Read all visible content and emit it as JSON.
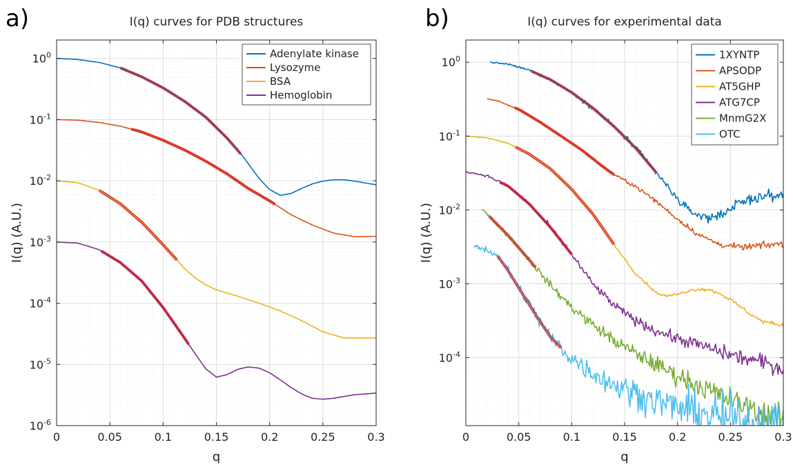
{
  "figure": {
    "background": "#ffffff"
  },
  "chart_data": [
    {
      "panel_tag": "a)",
      "type": "line",
      "title": "I(q) curves for PDB structures",
      "xlabel": "q",
      "ylabel": "I(q) (A.U.)",
      "xlim": [
        0,
        0.3
      ],
      "ylim": [
        1e-06,
        2
      ],
      "yscale": "log",
      "xticks": [
        0,
        0.05,
        0.1,
        0.15,
        0.2,
        0.25,
        0.3
      ],
      "xtick_labels": [
        "0",
        "0.05",
        "0.1",
        "0.15",
        "0.2",
        "0.25",
        "0.3"
      ],
      "yticks": [
        1,
        0.1,
        0.01,
        0.001,
        0.0001,
        1e-05,
        1e-06
      ],
      "ytick_labels": [
        {
          "base": "10",
          "exp": "0"
        },
        {
          "base": "10",
          "exp": "-1"
        },
        {
          "base": "10",
          "exp": "-2"
        },
        {
          "base": "10",
          "exp": "-3"
        },
        {
          "base": "10",
          "exp": "-4"
        },
        {
          "base": "10",
          "exp": "-5"
        },
        {
          "base": "10",
          "exp": "-6"
        }
      ],
      "grid": true,
      "minor_grid": true,
      "legend_position": "top-right",
      "highlight_color": "#d62728",
      "series": [
        {
          "name": "Adenylate kinase",
          "color": "#0072bd",
          "noise": 0,
          "x": [
            0,
            0.02,
            0.04,
            0.06,
            0.08,
            0.1,
            0.12,
            0.14,
            0.16,
            0.175,
            0.19,
            0.2,
            0.21,
            0.22,
            0.23,
            0.24,
            0.25,
            0.26,
            0.27,
            0.28,
            0.29,
            0.3
          ],
          "y": [
            1,
            0.96,
            0.86,
            0.7,
            0.5,
            0.33,
            0.2,
            0.11,
            0.05,
            0.025,
            0.011,
            0.0072,
            0.0058,
            0.0062,
            0.0075,
            0.0089,
            0.0099,
            0.0104,
            0.0104,
            0.0099,
            0.0092,
            0.0086
          ],
          "highlight": [
            0.06,
            0.173
          ]
        },
        {
          "name": "Lysozyme",
          "color": "#d95319",
          "noise": 0,
          "x": [
            0,
            0.02,
            0.04,
            0.06,
            0.08,
            0.1,
            0.12,
            0.14,
            0.16,
            0.18,
            0.2,
            0.22,
            0.24,
            0.26,
            0.28,
            0.3
          ],
          "y": [
            0.1,
            0.098,
            0.09,
            0.078,
            0.063,
            0.046,
            0.032,
            0.021,
            0.013,
            0.0075,
            0.0047,
            0.0028,
            0.0019,
            0.0014,
            0.00122,
            0.00124
          ],
          "highlight": [
            0.07,
            0.205
          ]
        },
        {
          "name": "BSA",
          "color": "#edb120",
          "noise": 0,
          "x": [
            0,
            0.02,
            0.04,
            0.06,
            0.08,
            0.1,
            0.11,
            0.12,
            0.13,
            0.14,
            0.15,
            0.17,
            0.19,
            0.21,
            0.23,
            0.25,
            0.27,
            0.3
          ],
          "y": [
            0.01,
            0.0093,
            0.007,
            0.0042,
            0.0021,
            0.0009,
            0.00058,
            0.00037,
            0.00026,
            0.0002,
            0.000165,
            0.00013,
            0.0001,
            7.5e-05,
            5.2e-05,
            3.4e-05,
            2.7e-05,
            2.7e-05
          ],
          "highlight": [
            0.04,
            0.113
          ]
        },
        {
          "name": "Hemoglobin",
          "color": "#7e2f8e",
          "noise": 0,
          "x": [
            0,
            0.02,
            0.04,
            0.06,
            0.08,
            0.1,
            0.11,
            0.12,
            0.13,
            0.14,
            0.15,
            0.16,
            0.17,
            0.18,
            0.19,
            0.2,
            0.21,
            0.22,
            0.23,
            0.24,
            0.25,
            0.26,
            0.27,
            0.28,
            0.3
          ],
          "y": [
            0.001,
            0.00096,
            0.00075,
            0.00046,
            0.00023,
            8.5e-05,
            4.8e-05,
            2.7e-05,
            1.5e-05,
            8.5e-06,
            6.2e-06,
            6.8e-06,
            8.3e-06,
            9.1e-06,
            8.7e-06,
            7.3e-06,
            5.6e-06,
            4.2e-06,
            3.3e-06,
            2.8e-06,
            2.7e-06,
            2.8e-06,
            3e-06,
            3.2e-06,
            3.4e-06
          ],
          "highlight": [
            0.042,
            0.124
          ]
        }
      ]
    },
    {
      "panel_tag": "b)",
      "type": "line",
      "title": "I(q) curves for experimental data",
      "xlabel": "q",
      "ylabel": "I(q) (A.U.)",
      "xlim": [
        0,
        0.3
      ],
      "ylim": [
        1.2e-05,
        2
      ],
      "yscale": "log",
      "xticks": [
        0,
        0.05,
        0.1,
        0.15,
        0.2,
        0.25,
        0.3
      ],
      "xtick_labels": [
        "0",
        "0.05",
        "0.1",
        "0.15",
        "0.2",
        "0.25",
        "0.3"
      ],
      "yticks": [
        1,
        0.1,
        0.01,
        0.001,
        0.0001
      ],
      "ytick_labels": [
        {
          "base": "10",
          "exp": "0"
        },
        {
          "base": "10",
          "exp": "-1"
        },
        {
          "base": "10",
          "exp": "-2"
        },
        {
          "base": "10",
          "exp": "-3"
        },
        {
          "base": "10",
          "exp": "-4"
        }
      ],
      "grid": true,
      "minor_grid": true,
      "legend_position": "top-right",
      "highlight_color": "#d62728",
      "series": [
        {
          "name": "1XYNTP",
          "color": "#0072bd",
          "noise": 0.08,
          "x": [
            0.023,
            0.04,
            0.06,
            0.08,
            0.1,
            0.12,
            0.14,
            0.16,
            0.18,
            0.19,
            0.2,
            0.21,
            0.22,
            0.23,
            0.24,
            0.25,
            0.26,
            0.27,
            0.28,
            0.29,
            0.3
          ],
          "y": [
            1,
            0.94,
            0.78,
            0.58,
            0.39,
            0.24,
            0.135,
            0.07,
            0.032,
            0.021,
            0.014,
            0.01,
            0.0085,
            0.0078,
            0.0085,
            0.0105,
            0.0125,
            0.0142,
            0.0152,
            0.0156,
            0.0155
          ],
          "highlight": [
            0.062,
            0.18
          ]
        },
        {
          "name": "APSODP",
          "color": "#d95319",
          "noise": 0.05,
          "x": [
            0.02,
            0.03,
            0.05,
            0.07,
            0.09,
            0.11,
            0.13,
            0.14,
            0.16,
            0.18,
            0.2,
            0.22,
            0.24,
            0.26,
            0.28,
            0.3
          ],
          "y": [
            0.32,
            0.3,
            0.23,
            0.155,
            0.1,
            0.064,
            0.038,
            0.03,
            0.021,
            0.013,
            0.0075,
            0.0046,
            0.0034,
            0.0031,
            0.0033,
            0.0035
          ],
          "highlight": [
            0.046,
            0.14
          ]
        },
        {
          "name": "AT5GHP",
          "color": "#edb120",
          "noise": 0.03,
          "x": [
            0,
            0.02,
            0.04,
            0.06,
            0.08,
            0.1,
            0.12,
            0.14,
            0.16,
            0.18,
            0.19,
            0.2,
            0.21,
            0.22,
            0.23,
            0.24,
            0.25,
            0.26,
            0.27,
            0.28,
            0.3
          ],
          "y": [
            0.1,
            0.095,
            0.08,
            0.057,
            0.036,
            0.019,
            0.0088,
            0.0034,
            0.0014,
            0.00075,
            0.00068,
            0.00072,
            0.0008,
            0.00085,
            0.00083,
            0.00074,
            0.00061,
            0.00048,
            0.00038,
            0.00031,
            0.00027
          ],
          "highlight": [
            0.047,
            0.14
          ]
        },
        {
          "name": "ATG7CP",
          "color": "#7e2f8e",
          "noise": 0.12,
          "x": [
            0,
            0.02,
            0.04,
            0.06,
            0.08,
            0.1,
            0.12,
            0.14,
            0.16,
            0.18,
            0.2,
            0.22,
            0.24,
            0.26,
            0.28,
            0.3
          ],
          "y": [
            0.033,
            0.029,
            0.021,
            0.012,
            0.0058,
            0.0025,
            0.00099,
            0.00051,
            0.00032,
            0.00023,
            0.00018,
            0.00015,
            0.00012,
            0.0001,
            8.7e-05,
            7e-05
          ],
          "highlight": [
            0.032,
            0.1
          ]
        },
        {
          "name": "MnmG2X",
          "color": "#77ac30",
          "noise": 0.2,
          "x": [
            0.015,
            0.02,
            0.04,
            0.06,
            0.08,
            0.1,
            0.12,
            0.14,
            0.16,
            0.18,
            0.2,
            0.22,
            0.24,
            0.26,
            0.28,
            0.3
          ],
          "y": [
            0.0105,
            0.0088,
            0.0045,
            0.0021,
            0.00095,
            0.00048,
            0.00028,
            0.00017,
            0.000115,
            8e-05,
            5.7e-05,
            4.2e-05,
            3.1e-05,
            2.3e-05,
            1.8e-05,
            1.5e-05
          ],
          "highlight": [
            0.022,
            0.066
          ]
        },
        {
          "name": "OTC",
          "color": "#4dbeee",
          "noise": 0.38,
          "x": [
            0.008,
            0.02,
            0.03,
            0.04,
            0.05,
            0.06,
            0.07,
            0.08,
            0.09,
            0.1,
            0.12,
            0.14,
            0.16,
            0.18,
            0.2,
            0.22,
            0.24,
            0.26,
            0.28,
            0.3
          ],
          "y": [
            0.0032,
            0.0029,
            0.0024,
            0.0015,
            0.00088,
            0.00052,
            0.00031,
            0.00019,
            0.000135,
            9.8e-05,
            6.2e-05,
            4.3e-05,
            3.3e-05,
            2.6e-05,
            2.1e-05,
            1.8e-05,
            1.6e-05,
            1.4e-05,
            1.3e-05,
            1.2e-05
          ],
          "highlight": [
            0.03,
            0.09
          ]
        }
      ]
    }
  ]
}
